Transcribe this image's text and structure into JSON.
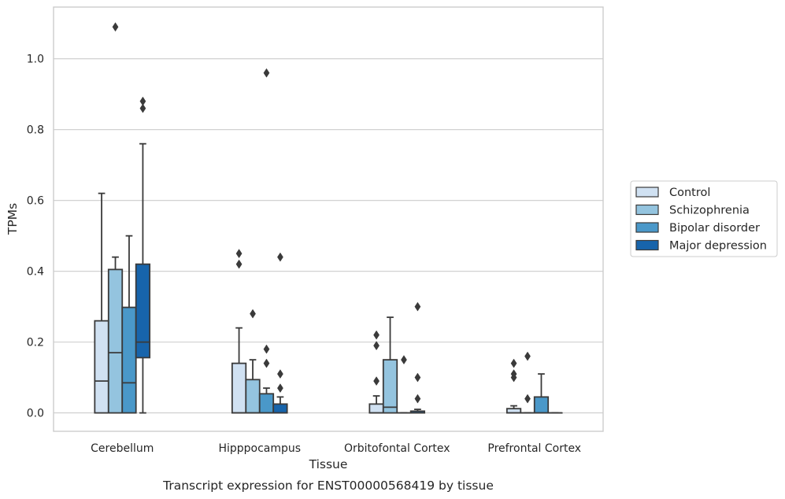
{
  "chart_data": {
    "type": "box",
    "xlabel": "Tissue",
    "ylabel": "TPMs",
    "caption": "Transcript expression for ENST00000568419 by tissue",
    "ylim": [
      -0.052,
      1.146
    ],
    "yticks": [
      0.0,
      0.2,
      0.4,
      0.6,
      0.8,
      1.0
    ],
    "ytick_labels": [
      "0.0",
      "0.2",
      "0.4",
      "0.6",
      "0.8",
      "1.0"
    ],
    "grid": "horizontal",
    "legend_position": "right",
    "categories": [
      "Cerebellum",
      "Hipppocampus",
      "Orbitofontal Cortex",
      "Prefrontal Cortex"
    ],
    "series": [
      {
        "name": "Control",
        "color": "#d0e1f2",
        "boxes": [
          {
            "whislo": 0.0,
            "q1": 0.0,
            "med": 0.09,
            "q3": 0.26,
            "whishi": 0.62,
            "fliers": []
          },
          {
            "whislo": 0.0,
            "q1": 0.0,
            "med": 0.0,
            "q3": 0.14,
            "whishi": 0.24,
            "fliers": [
              0.42,
              0.45
            ]
          },
          {
            "whislo": 0.0,
            "q1": 0.0,
            "med": 0.0,
            "q3": 0.025,
            "whishi": 0.048,
            "fliers": [
              0.09,
              0.19,
              0.22
            ]
          },
          {
            "whislo": 0.0,
            "q1": 0.0,
            "med": 0.0,
            "q3": 0.012,
            "whishi": 0.02,
            "fliers": [
              0.1,
              0.11,
              0.14
            ]
          }
        ]
      },
      {
        "name": "Schizophrenia",
        "color": "#94c4df",
        "boxes": [
          {
            "whislo": 0.0,
            "q1": 0.0,
            "med": 0.17,
            "q3": 0.405,
            "whishi": 0.44,
            "fliers": [
              1.09
            ]
          },
          {
            "whislo": 0.0,
            "q1": 0.0,
            "med": 0.0,
            "q3": 0.094,
            "whishi": 0.15,
            "fliers": [
              0.28
            ]
          },
          {
            "whislo": 0.0,
            "q1": 0.0,
            "med": 0.016,
            "q3": 0.15,
            "whishi": 0.27,
            "fliers": []
          },
          {
            "whislo": 0.0,
            "q1": 0.0,
            "med": 0.0,
            "q3": 0.0,
            "whishi": 0.0,
            "fliers": [
              0.04,
              0.16
            ]
          }
        ]
      },
      {
        "name": "Bipolar disorder",
        "color": "#4a98c9",
        "boxes": [
          {
            "whislo": 0.0,
            "q1": 0.0,
            "med": 0.085,
            "q3": 0.298,
            "whishi": 0.5,
            "fliers": []
          },
          {
            "whislo": 0.0,
            "q1": 0.0,
            "med": 0.0,
            "q3": 0.054,
            "whishi": 0.07,
            "fliers": [
              0.14,
              0.18,
              0.96
            ]
          },
          {
            "whislo": 0.0,
            "q1": 0.0,
            "med": 0.0,
            "q3": 0.0,
            "whishi": 0.0,
            "fliers": [
              0.15
            ]
          },
          {
            "whislo": 0.0,
            "q1": 0.0,
            "med": 0.0,
            "q3": 0.045,
            "whishi": 0.11,
            "fliers": []
          }
        ]
      },
      {
        "name": "Major depression",
        "color": "#1764ab",
        "boxes": [
          {
            "whislo": 0.0,
            "q1": 0.156,
            "med": 0.2,
            "q3": 0.42,
            "whishi": 0.76,
            "fliers": [
              0.86,
              0.88
            ]
          },
          {
            "whislo": 0.0,
            "q1": 0.0,
            "med": 0.0,
            "q3": 0.025,
            "whishi": 0.045,
            "fliers": [
              0.07,
              0.11,
              0.44
            ]
          },
          {
            "whislo": 0.0,
            "q1": 0.0,
            "med": 0.0,
            "q3": 0.005,
            "whishi": 0.01,
            "fliers": [
              0.04,
              0.1,
              0.3
            ]
          },
          {
            "whislo": 0.0,
            "q1": 0.0,
            "med": 0.0,
            "q3": 0.0,
            "whishi": 0.0,
            "fliers": []
          }
        ]
      }
    ]
  },
  "colors": {
    "edge": "#3a3a3a",
    "grid": "#cccccc",
    "frame": "#cccccc"
  }
}
